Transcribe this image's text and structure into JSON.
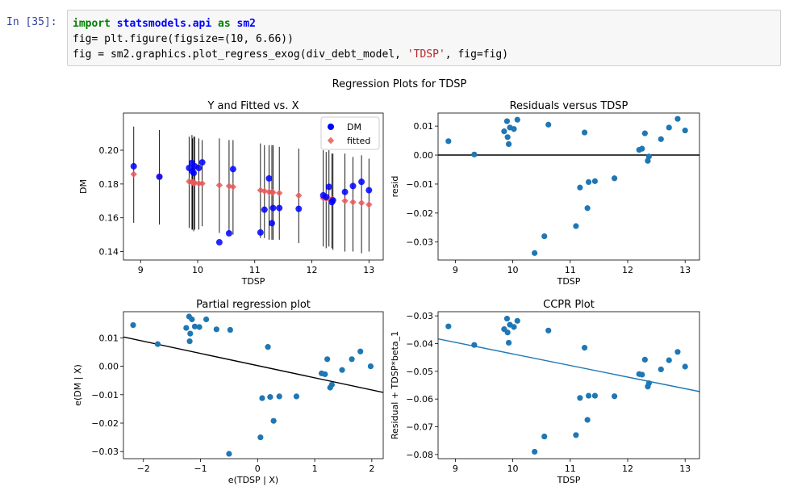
{
  "cell": {
    "prompt": "In [35]:",
    "code_lines": [
      [
        "import statsmodels.api as sm2"
      ],
      [
        "fig= plt.figure(figsize=(10, 6.66))"
      ],
      [
        "fig = sm2.graphics.plot_regress_exog(div_debt_model, 'TDSP', fig=fig)"
      ]
    ],
    "line1": {
      "kw1": "import",
      "mod": "statsmodels.api",
      "kw2": "as",
      "alias": "sm2"
    },
    "line2": "fig= plt.figure(figsize=(10, 6.66))",
    "line3": {
      "pre": "fig = sm2.graphics.plot_regress_exog(div_debt_model, ",
      "str": "'TDSP'",
      "post": ", fig=fig)"
    }
  },
  "figure": {
    "suptitle": "Regression Plots for TDSP"
  },
  "colors": {
    "dm_points": "#0000ff",
    "fitted_points": "#e8595b",
    "scatter": "#1f77b4",
    "lines": "#000000",
    "ccpr_line": "#1f77b4"
  },
  "chart_data": [
    {
      "type": "scatter",
      "title": "Y and Fitted vs. X",
      "xlabel": "TDSP",
      "ylabel": "DM",
      "xlim": [
        8.7,
        13.25
      ],
      "ylim": [
        0.135,
        0.222
      ],
      "xticks": [
        9,
        10,
        11,
        12,
        13
      ],
      "yticks": [
        0.14,
        0.16,
        0.18,
        0.2
      ],
      "ytick_labels": [
        "0.14",
        "0.16",
        "0.18",
        "0.20"
      ],
      "legend": {
        "placement": "top-right",
        "entries": [
          "DM",
          "fitted"
        ]
      },
      "x": [
        8.88,
        9.33,
        9.85,
        9.9,
        9.91,
        9.93,
        9.95,
        10.02,
        10.08,
        10.38,
        10.55,
        10.62,
        11.1,
        11.17,
        11.25,
        11.3,
        11.32,
        11.43,
        11.77,
        12.2,
        12.25,
        12.3,
        12.35,
        12.37,
        12.58,
        12.72,
        12.87,
        13.0
      ],
      "series": [
        {
          "name": "DM",
          "values": [
            0.1905,
            0.1843,
            0.1895,
            0.1925,
            0.1875,
            0.1865,
            0.1905,
            0.1895,
            0.1928,
            0.1455,
            0.1508,
            0.1888,
            0.1513,
            0.1648,
            0.1833,
            0.1568,
            0.1658,
            0.1658,
            0.1653,
            0.1733,
            0.1723,
            0.1783,
            0.1693,
            0.1703,
            0.1753,
            0.1788,
            0.1813,
            0.1763
          ]
        },
        {
          "name": "fitted",
          "values": [
            0.1858,
            0.1843,
            0.1815,
            0.181,
            0.181,
            0.1808,
            0.1806,
            0.1803,
            0.1803,
            0.1793,
            0.1788,
            0.1783,
            0.1763,
            0.1758,
            0.1753,
            0.1752,
            0.175,
            0.1746,
            0.1732,
            0.1716,
            0.1714,
            0.1712,
            0.171,
            0.1708,
            0.17,
            0.1693,
            0.1688,
            0.1678
          ]
        }
      ],
      "error_bars": {
        "lower": [
          0.157,
          0.156,
          0.154,
          0.153,
          0.153,
          0.152,
          0.153,
          0.153,
          0.155,
          0.151,
          0.151,
          0.15,
          0.148,
          0.148,
          0.147,
          0.147,
          0.147,
          0.147,
          0.145,
          0.143,
          0.142,
          0.143,
          0.142,
          0.141,
          0.14,
          0.14,
          0.139,
          0.14
        ],
        "upper": [
          0.214,
          0.212,
          0.208,
          0.209,
          0.207,
          0.208,
          0.208,
          0.207,
          0.206,
          0.207,
          0.206,
          0.206,
          0.204,
          0.203,
          0.203,
          0.203,
          0.203,
          0.202,
          0.201,
          0.2,
          0.199,
          0.2,
          0.198,
          0.198,
          0.198,
          0.196,
          0.197,
          0.195
        ]
      }
    },
    {
      "type": "scatter",
      "title": "Residuals versus TDSP",
      "xlabel": "TDSP",
      "ylabel": "resid",
      "xlim": [
        8.7,
        13.25
      ],
      "ylim": [
        -0.0362,
        0.0145
      ],
      "xticks": [
        9,
        10,
        11,
        12,
        13
      ],
      "yticks": [
        -0.03,
        -0.02,
        -0.01,
        0.0,
        0.01
      ],
      "ytick_labels": [
        "−0.03",
        "−0.02",
        "−0.01",
        "0.00",
        "0.01"
      ],
      "hline": 0,
      "x": [
        8.88,
        9.33,
        9.85,
        9.9,
        9.91,
        9.93,
        9.95,
        10.02,
        10.08,
        10.38,
        10.55,
        10.62,
        11.1,
        11.17,
        11.25,
        11.3,
        11.32,
        11.43,
        11.77,
        12.2,
        12.25,
        12.3,
        12.35,
        12.37,
        12.58,
        12.72,
        12.87,
        13.0
      ],
      "y": [
        0.0048,
        0.0002,
        0.0082,
        0.0117,
        0.0062,
        0.0038,
        0.0095,
        0.009,
        0.0122,
        -0.0338,
        -0.028,
        0.0105,
        -0.0245,
        -0.0112,
        0.0078,
        -0.0183,
        -0.0093,
        -0.009,
        -0.008,
        0.0018,
        0.0022,
        0.0075,
        -0.002,
        -0.0005,
        0.0055,
        0.0095,
        0.0125,
        0.0085
      ]
    },
    {
      "type": "scatter",
      "title": "Partial regression plot",
      "xlabel": "e(TDSP | X)",
      "ylabel": "e(DM | X)",
      "xlim": [
        -2.35,
        2.2
      ],
      "ylim": [
        -0.0325,
        0.0192
      ],
      "xticks": [
        -2,
        -1,
        0,
        1,
        2
      ],
      "xtick_labels": [
        "−2",
        "−1",
        "0",
        "1",
        "2"
      ],
      "yticks": [
        -0.03,
        -0.02,
        -0.01,
        0.0,
        0.01
      ],
      "ytick_labels": [
        "−0.03",
        "−0.02",
        "−0.01",
        "0.00",
        "0.01"
      ],
      "fit_line": {
        "x": [
          -2.35,
          2.2
        ],
        "y": [
          0.0103,
          -0.0092
        ]
      },
      "x": [
        -2.18,
        -1.75,
        -1.25,
        -1.2,
        -1.19,
        -1.18,
        -1.15,
        -1.1,
        -1.02,
        -0.9,
        -0.72,
        -0.48,
        -0.5,
        0.05,
        0.08,
        0.18,
        0.22,
        0.28,
        0.38,
        0.68,
        1.12,
        1.18,
        1.22,
        1.27,
        1.3,
        1.48,
        1.65,
        1.8,
        1.98
      ],
      "y": [
        0.0145,
        0.0078,
        0.0135,
        0.0175,
        0.0088,
        0.0115,
        0.0165,
        0.014,
        0.0138,
        0.0165,
        0.013,
        0.0128,
        -0.0308,
        -0.025,
        -0.0112,
        0.0068,
        -0.0108,
        -0.0192,
        -0.0106,
        -0.0106,
        -0.0025,
        -0.0028,
        0.0025,
        -0.0075,
        -0.0065,
        -0.0013,
        0.0025,
        0.0052,
        0.0
      ]
    },
    {
      "type": "scatter",
      "title": "CCPR Plot",
      "xlabel": "TDSP",
      "ylabel": "Residual + TDSP*beta_1",
      "xlim": [
        8.7,
        13.25
      ],
      "ylim": [
        -0.0815,
        -0.0285
      ],
      "xticks": [
        9,
        10,
        11,
        12,
        13
      ],
      "yticks": [
        -0.08,
        -0.07,
        -0.06,
        -0.05,
        -0.04,
        -0.03
      ],
      "ytick_labels": [
        "−0.08",
        "−0.07",
        "−0.06",
        "−0.05",
        "−0.04",
        "−0.03"
      ],
      "fit_line": {
        "x": [
          8.7,
          13.25
        ],
        "y": [
          -0.0383,
          -0.0573
        ]
      },
      "x": [
        8.88,
        9.33,
        9.85,
        9.9,
        9.91,
        9.93,
        9.95,
        10.02,
        10.08,
        10.38,
        10.55,
        10.62,
        11.1,
        11.17,
        11.25,
        11.3,
        11.32,
        11.43,
        11.77,
        12.2,
        12.25,
        12.3,
        12.35,
        12.37,
        12.58,
        12.72,
        12.87,
        13.0
      ],
      "y": [
        -0.0338,
        -0.0405,
        -0.0348,
        -0.031,
        -0.036,
        -0.0397,
        -0.0332,
        -0.034,
        -0.0318,
        -0.079,
        -0.0735,
        -0.0353,
        -0.073,
        -0.0596,
        -0.0415,
        -0.0675,
        -0.0588,
        -0.0588,
        -0.059,
        -0.051,
        -0.0512,
        -0.0458,
        -0.0555,
        -0.0543,
        -0.0493,
        -0.046,
        -0.043,
        -0.0483
      ]
    }
  ]
}
